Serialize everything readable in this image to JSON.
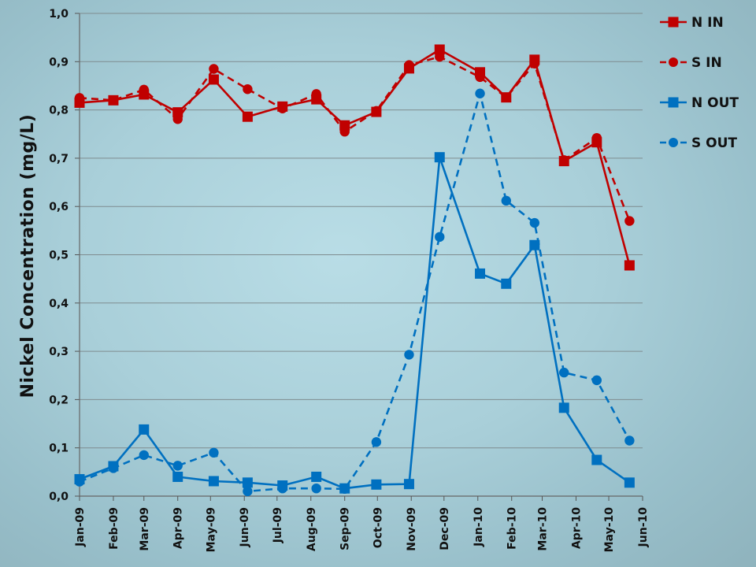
{
  "chart_data": {
    "type": "line",
    "title": "",
    "xlabel": "",
    "ylabel": "Nickel Concentration (mg/L)",
    "ylim": [
      0,
      1.0
    ],
    "yticks": [
      "0,0",
      "0,1",
      "0,2",
      "0,3",
      "0,4",
      "0,5",
      "0,6",
      "0,7",
      "0,8",
      "0,9",
      "1,0"
    ],
    "categories": [
      "Jan-09",
      "Feb-09",
      "Mar-09",
      "Apr-09",
      "May-09",
      "Jun-09",
      "Jul-09",
      "Aug-09",
      "Sep-09",
      "Oct-09",
      "Nov-09",
      "Dec-09",
      "Jan-10",
      "Feb-10",
      "Mar-10",
      "Apr-10",
      "May-10",
      "Jun-10"
    ],
    "grid": true,
    "legend_position": "right",
    "series": [
      {
        "name": "N IN",
        "color": "#c00000",
        "marker": "square",
        "dash": "solid",
        "points": [
          [
            "2009-01-01",
            0.815
          ],
          [
            "2009-02-01",
            0.82
          ],
          [
            "2009-03-01",
            0.832
          ],
          [
            "2009-04-01",
            0.795
          ],
          [
            "2009-05-04",
            0.863
          ],
          [
            "2009-06-04",
            0.786
          ],
          [
            "2009-07-06",
            0.807
          ],
          [
            "2009-08-06",
            0.822
          ],
          [
            "2009-09-01",
            0.768
          ],
          [
            "2009-09-30",
            0.796
          ],
          [
            "2009-10-30",
            0.886
          ],
          [
            "2009-11-27",
            0.925
          ],
          [
            "2010-01-03",
            0.878
          ],
          [
            "2010-01-27",
            0.826
          ],
          [
            "2010-02-22",
            0.904
          ],
          [
            "2010-03-21",
            0.694
          ],
          [
            "2010-04-20",
            0.733
          ],
          [
            "2010-05-20",
            0.478
          ]
        ]
      },
      {
        "name": "S IN",
        "color": "#c00000",
        "marker": "circle",
        "dash": "dashed",
        "points": [
          [
            "2009-01-01",
            0.825
          ],
          [
            "2009-02-01",
            0.82
          ],
          [
            "2009-03-01",
            0.842
          ],
          [
            "2009-04-01",
            0.781
          ],
          [
            "2009-05-04",
            0.885
          ],
          [
            "2009-06-04",
            0.843
          ],
          [
            "2009-07-06",
            0.803
          ],
          [
            "2009-08-06",
            0.833
          ],
          [
            "2009-09-01",
            0.755
          ],
          [
            "2009-09-30",
            0.798
          ],
          [
            "2009-10-30",
            0.893
          ],
          [
            "2009-11-27",
            0.91
          ],
          [
            "2010-01-03",
            0.868
          ],
          [
            "2010-01-27",
            0.826
          ],
          [
            "2010-02-22",
            0.896
          ],
          [
            "2010-03-21",
            0.696
          ],
          [
            "2010-04-20",
            0.742
          ],
          [
            "2010-05-20",
            0.57
          ]
        ]
      },
      {
        "name": "N OUT",
        "color": "#0070c0",
        "marker": "square",
        "dash": "solid",
        "points": [
          [
            "2009-01-01",
            0.035
          ],
          [
            "2009-02-01",
            0.062
          ],
          [
            "2009-03-01",
            0.138
          ],
          [
            "2009-04-01",
            0.04
          ],
          [
            "2009-05-04",
            0.031
          ],
          [
            "2009-06-04",
            0.028
          ],
          [
            "2009-07-06",
            0.022
          ],
          [
            "2009-08-06",
            0.04
          ],
          [
            "2009-09-01",
            0.016
          ],
          [
            "2009-09-30",
            0.024
          ],
          [
            "2009-10-30",
            0.025
          ],
          [
            "2009-11-27",
            0.702
          ],
          [
            "2010-01-03",
            0.461
          ],
          [
            "2010-01-27",
            0.44
          ],
          [
            "2010-02-22",
            0.52
          ],
          [
            "2010-03-21",
            0.183
          ],
          [
            "2010-04-20",
            0.075
          ],
          [
            "2010-05-20",
            0.028
          ]
        ]
      },
      {
        "name": "S OUT",
        "color": "#0070c0",
        "marker": "circle",
        "dash": "dashed",
        "points": [
          [
            "2009-01-01",
            0.03
          ],
          [
            "2009-02-01",
            0.058
          ],
          [
            "2009-03-01",
            0.085
          ],
          [
            "2009-04-01",
            0.063
          ],
          [
            "2009-05-04",
            0.09
          ],
          [
            "2009-06-04",
            0.01
          ],
          [
            "2009-07-06",
            0.016
          ],
          [
            "2009-08-06",
            0.016
          ],
          [
            "2009-09-01",
            0.015
          ],
          [
            "2009-09-30",
            0.112
          ],
          [
            "2009-10-30",
            0.293
          ],
          [
            "2009-11-27",
            0.537
          ],
          [
            "2010-01-03",
            0.834
          ],
          [
            "2010-01-27",
            0.612
          ],
          [
            "2010-02-22",
            0.566
          ],
          [
            "2010-03-21",
            0.256
          ],
          [
            "2010-04-20",
            0.24
          ],
          [
            "2010-05-20",
            0.115
          ]
        ]
      }
    ]
  }
}
